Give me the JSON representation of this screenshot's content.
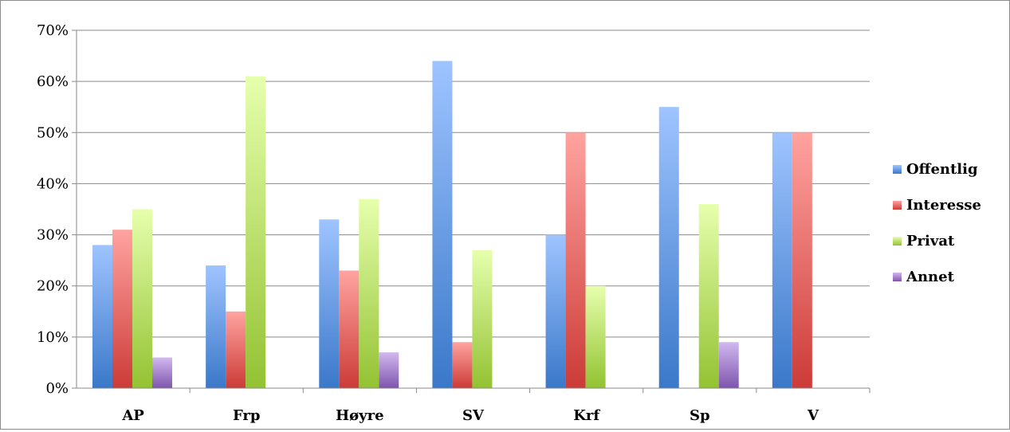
{
  "chart_data": {
    "type": "bar",
    "categories": [
      "AP",
      "Frp",
      "Høyre",
      "SV",
      "Krf",
      "Sp",
      "V"
    ],
    "series": [
      {
        "name": "Offentlig",
        "values": [
          28,
          24,
          33,
          64,
          30,
          55,
          50
        ]
      },
      {
        "name": "Interesse",
        "values": [
          31,
          15,
          23,
          9,
          50,
          0,
          50
        ]
      },
      {
        "name": "Privat",
        "values": [
          35,
          61,
          37,
          27,
          20,
          36,
          0
        ]
      },
      {
        "name": "Annet",
        "values": [
          6,
          0,
          7,
          0,
          0,
          9,
          0
        ]
      }
    ],
    "ylim": [
      0,
      70
    ],
    "y_ticks": [
      "0%",
      "10%",
      "20%",
      "30%",
      "40%",
      "50%",
      "60%",
      "70%"
    ],
    "grid": true,
    "legend_position": "right",
    "colors": {
      "Offentlig": [
        "#9fc4ff",
        "#3a78c9"
      ],
      "Interesse": [
        "#ffa3a0",
        "#cc3b37"
      ],
      "Privat": [
        "#e6ffad",
        "#93c232"
      ],
      "Annet": [
        "#d2b8f0",
        "#7e55ad"
      ]
    },
    "xlabel": "",
    "ylabel": "",
    "title": ""
  }
}
